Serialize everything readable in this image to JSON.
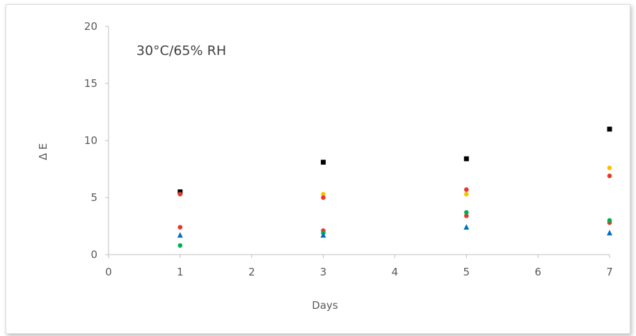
{
  "chart_data": {
    "type": "scatter",
    "annotation": "30°C/65% RH",
    "xlabel": "Days",
    "ylabel": "Δ E",
    "xlim": [
      0,
      7
    ],
    "ylim": [
      0,
      20
    ],
    "x_ticks": [
      "0",
      "1",
      "2",
      "3",
      "4",
      "5",
      "6",
      "7"
    ],
    "y_ticks": [
      "0",
      "5",
      "10",
      "15",
      "20"
    ],
    "grid": false,
    "legend": "none",
    "series": [
      {
        "marker": "square",
        "color": "#000000",
        "x": [
          1,
          3,
          5,
          7
        ],
        "y": [
          5.5,
          8.1,
          8.4,
          11.0
        ]
      },
      {
        "marker": "circle",
        "color": "#ffc000",
        "x": [
          1,
          3,
          5,
          7
        ],
        "y": [
          2.4,
          5.3,
          5.3,
          7.6
        ]
      },
      {
        "marker": "circle",
        "color": "#e8382b",
        "x": [
          1,
          3,
          5,
          7
        ],
        "y": [
          5.3,
          5.0,
          5.7,
          6.9
        ]
      },
      {
        "marker": "circle",
        "color": "#e8382b",
        "x": [
          1,
          3,
          5,
          7
        ],
        "y": [
          2.4,
          2.1,
          3.4,
          2.8
        ]
      },
      {
        "marker": "circle",
        "color": "#00b050",
        "x": [
          1,
          3,
          5,
          7
        ],
        "y": [
          0.8,
          1.9,
          3.7,
          3.0
        ]
      },
      {
        "marker": "triangle",
        "color": "#0070c0",
        "x": [
          1,
          3,
          5,
          7
        ],
        "y": [
          1.7,
          1.7,
          2.4,
          1.9
        ]
      }
    ]
  }
}
